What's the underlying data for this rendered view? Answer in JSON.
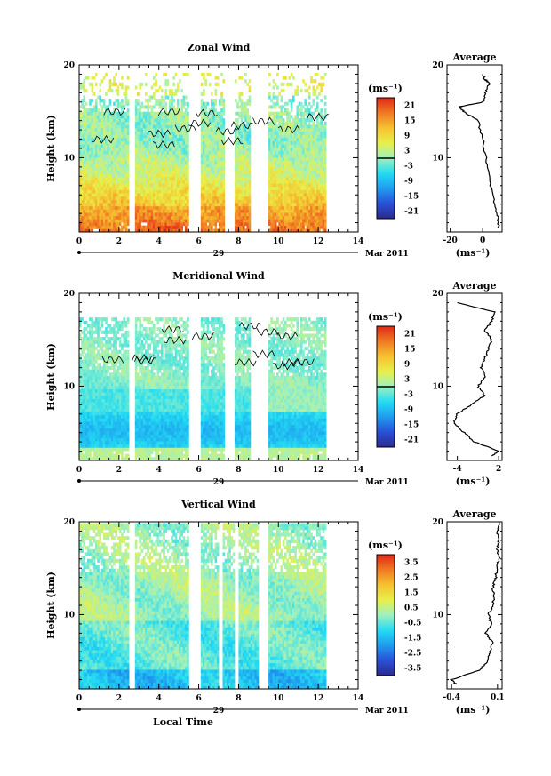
{
  "chart_data": [
    {
      "type": "heatmap",
      "title": "Zonal Wind",
      "ylabel": "Height (km)",
      "xlim": [
        0,
        14
      ],
      "ylim": [
        2,
        20
      ],
      "x_ticks": [
        "0",
        "2",
        "4",
        "6",
        "8",
        "10",
        "12",
        "14"
      ],
      "y_ticks": [
        "10",
        "20"
      ],
      "date_marker": "29",
      "date_label": "Mar 2011",
      "unit_label": "(ms⁻¹)",
      "colorbar_ticks": [
        "21",
        "15",
        "9",
        "3",
        "-3",
        "-9",
        "-15",
        "-21"
      ],
      "colorbar_range": [
        -24,
        24
      ],
      "data_gaps_hours": [
        [
          2.5,
          2.8
        ],
        [
          5.4,
          6.0
        ],
        [
          7.2,
          7.7
        ],
        [
          8.5,
          9.4
        ],
        [
          12.3,
          14
        ]
      ],
      "average_profile": {
        "title": "Average",
        "xlim": [
          -22,
          12
        ],
        "x_ticks": [
          "-20",
          "0"
        ],
        "xlabel": "(ms⁻¹)",
        "height_km": [
          2.5,
          4,
          6,
          8,
          10,
          12,
          14,
          15,
          15.5,
          16,
          17,
          18,
          18.5,
          19
        ],
        "values": [
          10,
          9,
          6,
          4,
          2,
          0,
          -3,
          -12,
          -14,
          0,
          2,
          4,
          1,
          0
        ]
      }
    },
    {
      "type": "heatmap",
      "title": "Meridional Wind",
      "ylabel": "Height (km)",
      "xlim": [
        0,
        14
      ],
      "ylim": [
        2,
        20
      ],
      "x_ticks": [
        "0",
        "2",
        "4",
        "6",
        "8",
        "10",
        "12",
        "14"
      ],
      "y_ticks": [
        "10",
        "20"
      ],
      "date_marker": "29",
      "date_label": "Mar 2011",
      "unit_label": "(ms⁻¹)",
      "colorbar_ticks": [
        "21",
        "15",
        "9",
        "3",
        "-3",
        "-9",
        "-15",
        "-21"
      ],
      "colorbar_range": [
        -24,
        24
      ],
      "data_gaps_hours": [
        [
          2.5,
          2.8
        ],
        [
          5.4,
          6.0
        ],
        [
          7.2,
          7.7
        ],
        [
          8.5,
          9.4
        ],
        [
          12.3,
          14
        ]
      ],
      "average_profile": {
        "title": "Average",
        "xlim": [
          -5.5,
          2.5
        ],
        "x_ticks": [
          "-4",
          "2"
        ],
        "xlabel": "(ms⁻¹)",
        "height_km": [
          2.5,
          3,
          4,
          5,
          6,
          7,
          8,
          9,
          10,
          11,
          12,
          13,
          14,
          15,
          16,
          17,
          18,
          19
        ],
        "values": [
          1,
          2,
          -1.5,
          -3,
          -4.5,
          -4,
          -2,
          0,
          -1,
          0,
          -0.5,
          0,
          0.5,
          1,
          0,
          1,
          1.5,
          -4
        ]
      }
    },
    {
      "type": "heatmap",
      "title": "Vertical Wind",
      "ylabel": "Height (km)",
      "xlabel": "Local Time",
      "xlim": [
        0,
        14
      ],
      "ylim": [
        2,
        20
      ],
      "x_ticks": [
        "0",
        "2",
        "4",
        "6",
        "8",
        "10",
        "12",
        "14"
      ],
      "y_ticks": [
        "10",
        "20"
      ],
      "date_marker": "29",
      "date_label": "Mar 2011",
      "unit_label": "(ms⁻¹)",
      "colorbar_ticks": [
        "3.5",
        "2.5",
        "1.5",
        "0.5",
        "-0.5",
        "-1.5",
        "-2.5",
        "-3.5"
      ],
      "colorbar_range": [
        -4,
        4
      ],
      "data_gaps_hours": [
        [
          2.5,
          2.8
        ],
        [
          5.4,
          6.0
        ],
        [
          6.9,
          7.1
        ],
        [
          7.7,
          7.9
        ],
        [
          8.9,
          9.4
        ],
        [
          12.3,
          14
        ]
      ],
      "average_profile": {
        "title": "Average",
        "xlim": [
          -0.45,
          0.15
        ],
        "x_ticks": [
          "-0.4",
          "0.1"
        ],
        "xlabel": "(ms⁻¹)",
        "height_km": [
          2.5,
          3,
          4,
          5,
          6,
          7,
          8,
          9,
          10,
          11,
          12,
          13,
          14,
          15,
          16,
          17,
          18,
          19,
          20
        ],
        "values": [
          -0.35,
          -0.4,
          -0.1,
          0.0,
          0.02,
          0.05,
          -0.03,
          0.03,
          0.0,
          0.05,
          0.06,
          0.05,
          0.08,
          0.09,
          0.12,
          0.1,
          0.11,
          0.1,
          0.12
        ]
      }
    }
  ]
}
